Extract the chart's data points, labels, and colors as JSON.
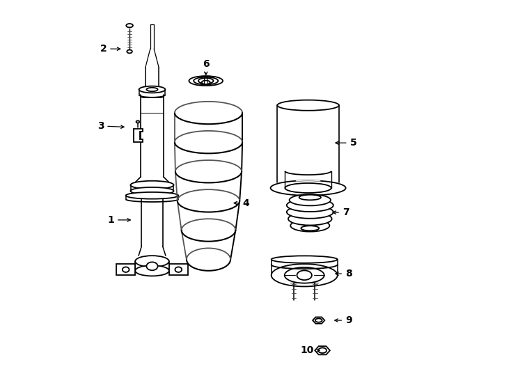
{
  "background_color": "#ffffff",
  "line_color": "#000000",
  "lw": 1.3,
  "fig_w": 7.34,
  "fig_h": 5.4,
  "labels": {
    "1": [
      0.115,
      0.415,
      0.175,
      0.415
    ],
    "2": [
      0.095,
      0.87,
      0.148,
      0.87
    ],
    "3": [
      0.088,
      0.665,
      0.158,
      0.662
    ],
    "4": [
      0.475,
      0.46,
      0.435,
      0.46
    ],
    "5": [
      0.76,
      0.62,
      0.705,
      0.62
    ],
    "6": [
      0.368,
      0.83,
      0.368,
      0.793
    ],
    "7": [
      0.74,
      0.435,
      0.698,
      0.435
    ],
    "8": [
      0.748,
      0.272,
      0.705,
      0.272
    ],
    "9": [
      0.748,
      0.148,
      0.703,
      0.148
    ],
    "10": [
      0.637,
      0.068,
      0.678,
      0.068
    ]
  }
}
